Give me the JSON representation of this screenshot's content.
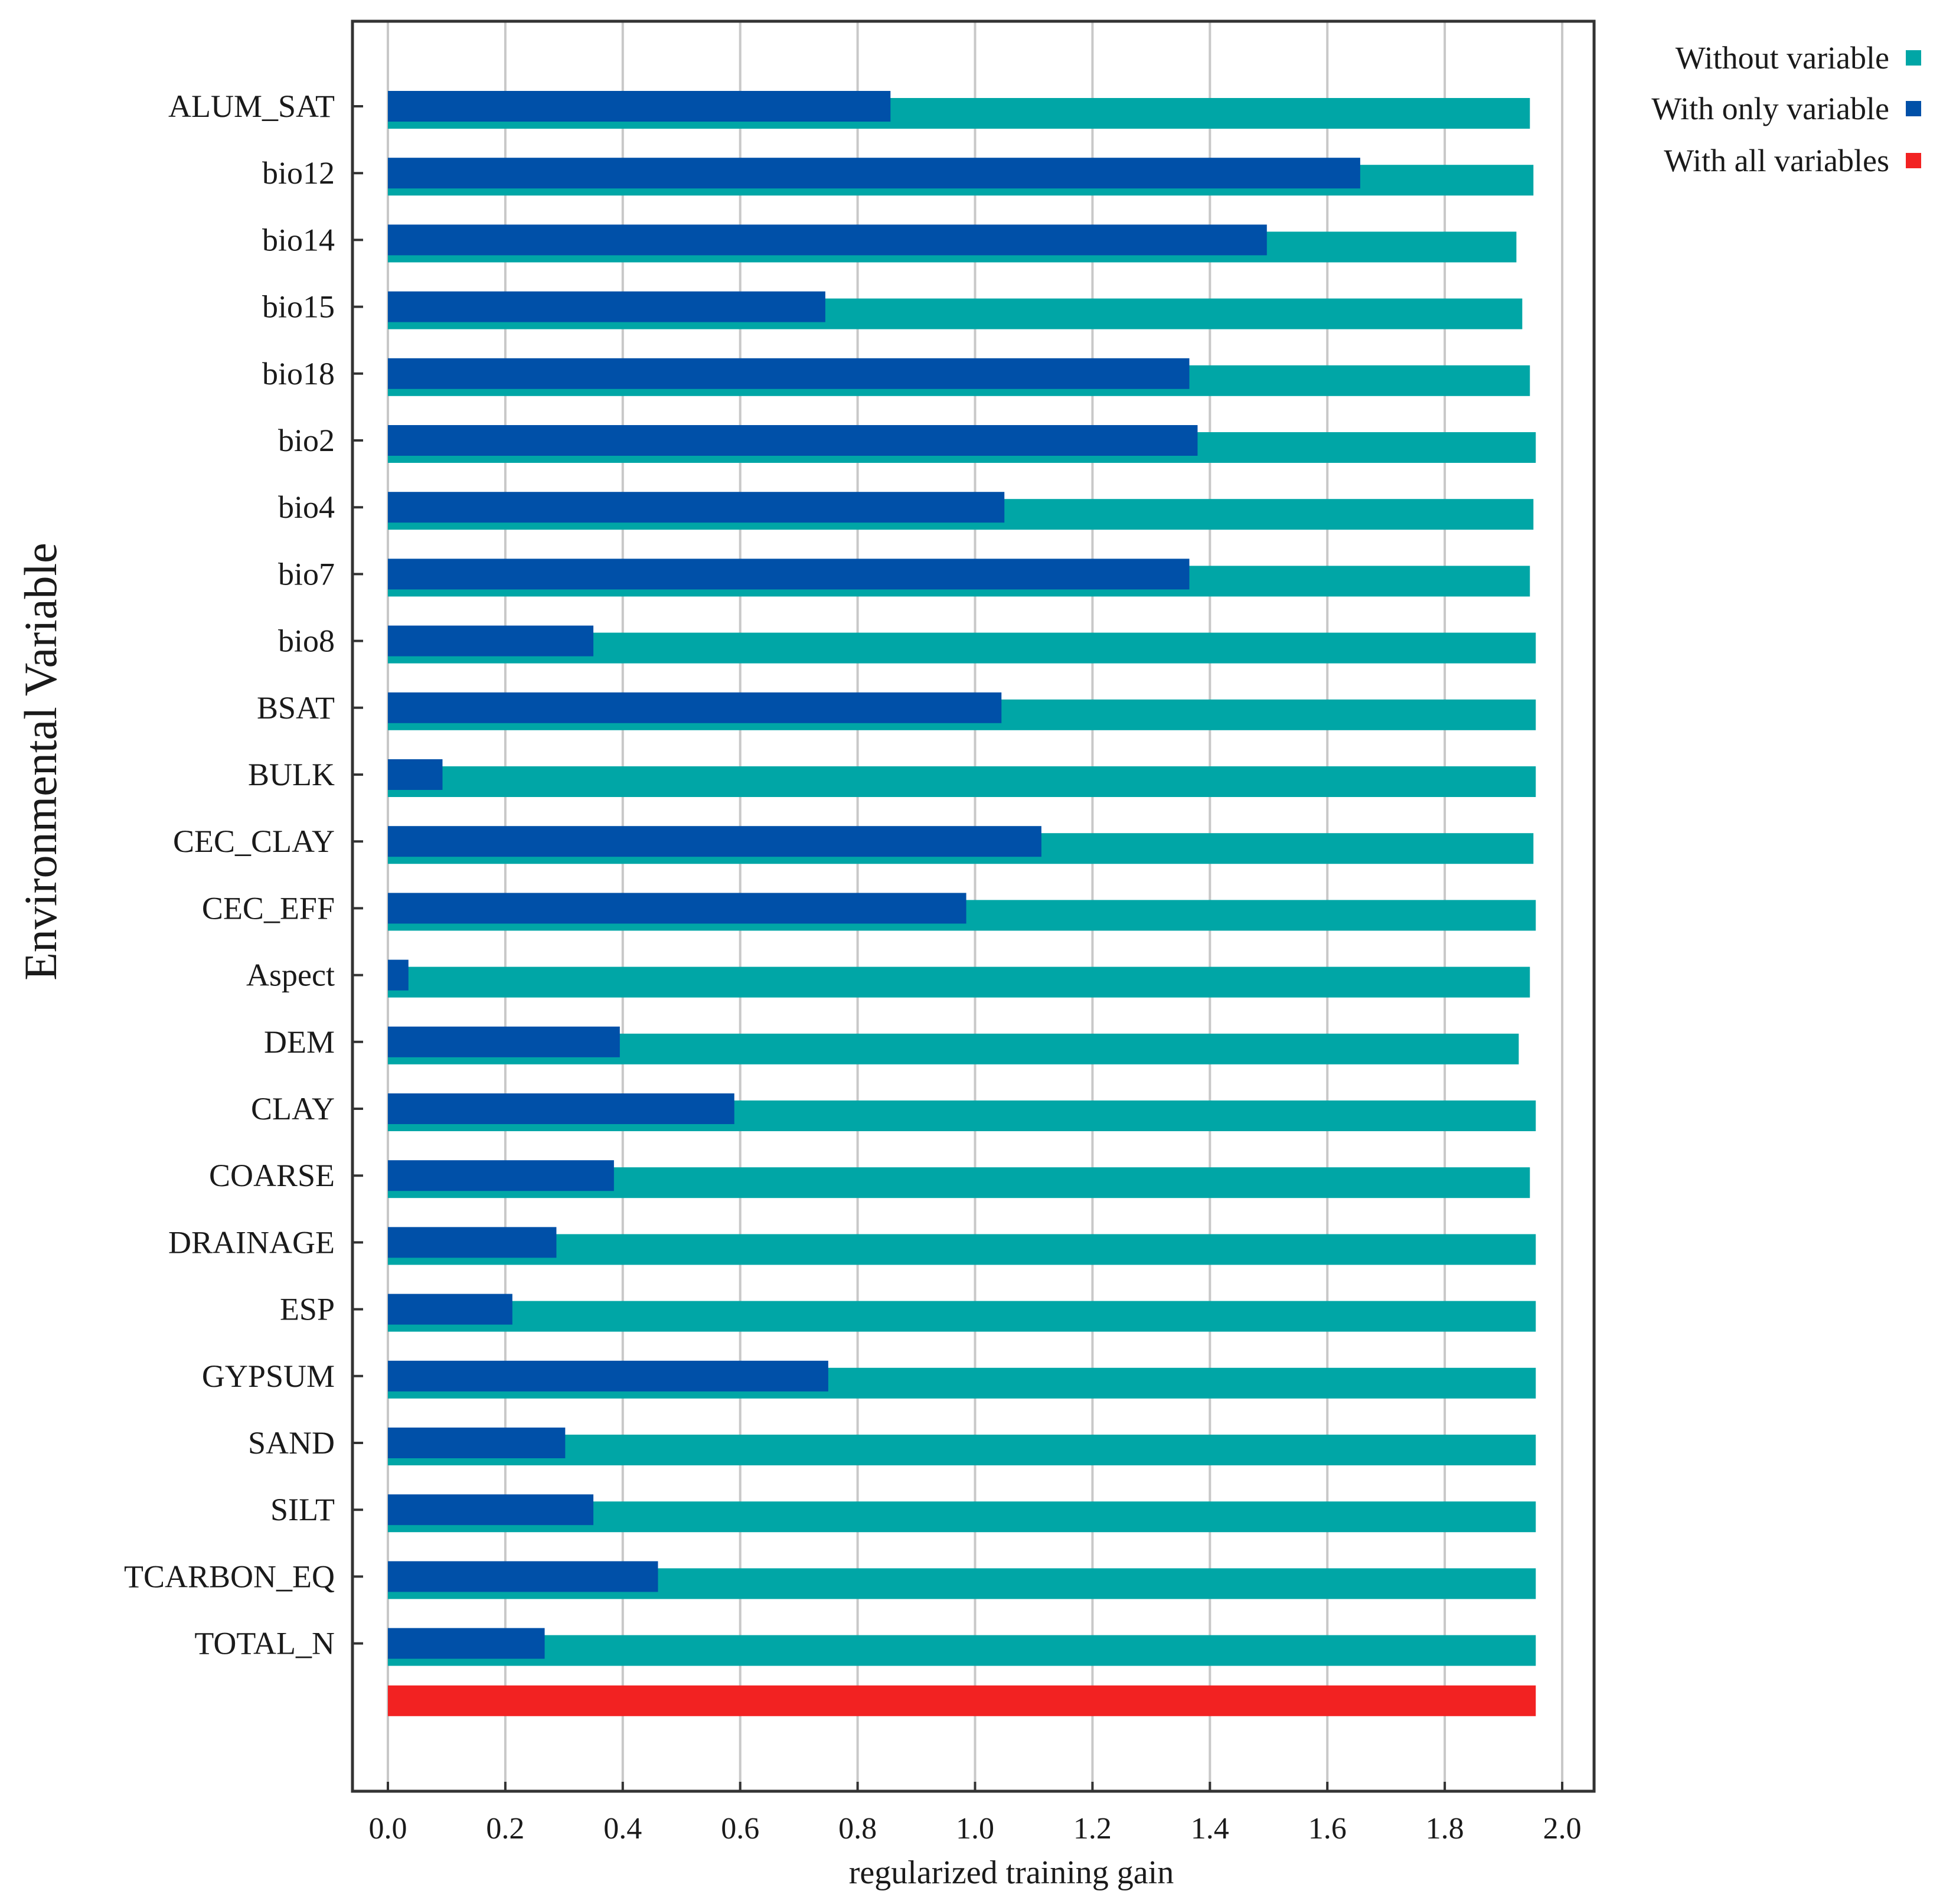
{
  "chart_data": {
    "type": "bar",
    "orientation": "horizontal",
    "title": "",
    "xlabel": "regularized training gain",
    "ylabel": "Environmental Variable",
    "xlim": [
      -0.06,
      2.06
    ],
    "xticks": [
      0.0,
      0.2,
      0.4,
      0.6,
      0.8,
      1.0,
      1.2,
      1.4,
      1.6,
      1.8,
      2.0
    ],
    "xtick_labels": [
      "0.0",
      "0.2",
      "0.4",
      "0.6",
      "0.8",
      "1.0",
      "1.2",
      "1.4",
      "1.6",
      "1.8",
      "2.0"
    ],
    "grid": true,
    "legend_position": "top-right",
    "categories": [
      "ALUM_SAT",
      "bio12",
      "bio14",
      "bio15",
      "bio18",
      "bio2",
      "bio4",
      "bio7",
      "bio8",
      "BSAT",
      "BULK",
      "CEC_CLAY",
      "CEC_EFF",
      "Aspect",
      "DEM",
      "CLAY",
      "COARSE",
      "DRAINAGE",
      "ESP",
      "GYPSUM",
      "SAND",
      "SILT",
      "TCARBON_EQ",
      "TOTAL_N"
    ],
    "series": [
      {
        "name": "Without variable",
        "color": "#00a6a6",
        "values": [
          1.945,
          1.951,
          1.922,
          1.932,
          1.945,
          1.955,
          1.951,
          1.945,
          1.955,
          1.955,
          1.955,
          1.951,
          1.955,
          1.945,
          1.926,
          1.955,
          1.945,
          1.955,
          1.955,
          1.955,
          1.955,
          1.955,
          1.955,
          1.955
        ]
      },
      {
        "name": "With only variable",
        "color": "#0050a8",
        "values": [
          0.856,
          1.656,
          1.497,
          0.745,
          1.365,
          1.379,
          1.05,
          1.365,
          0.35,
          1.045,
          0.093,
          1.113,
          0.985,
          0.035,
          0.395,
          0.59,
          0.385,
          0.287,
          0.212,
          0.75,
          0.302,
          0.35,
          0.46,
          0.267
        ]
      },
      {
        "name": "With all variables",
        "color": "#f22222",
        "value": 1.955
      }
    ]
  }
}
